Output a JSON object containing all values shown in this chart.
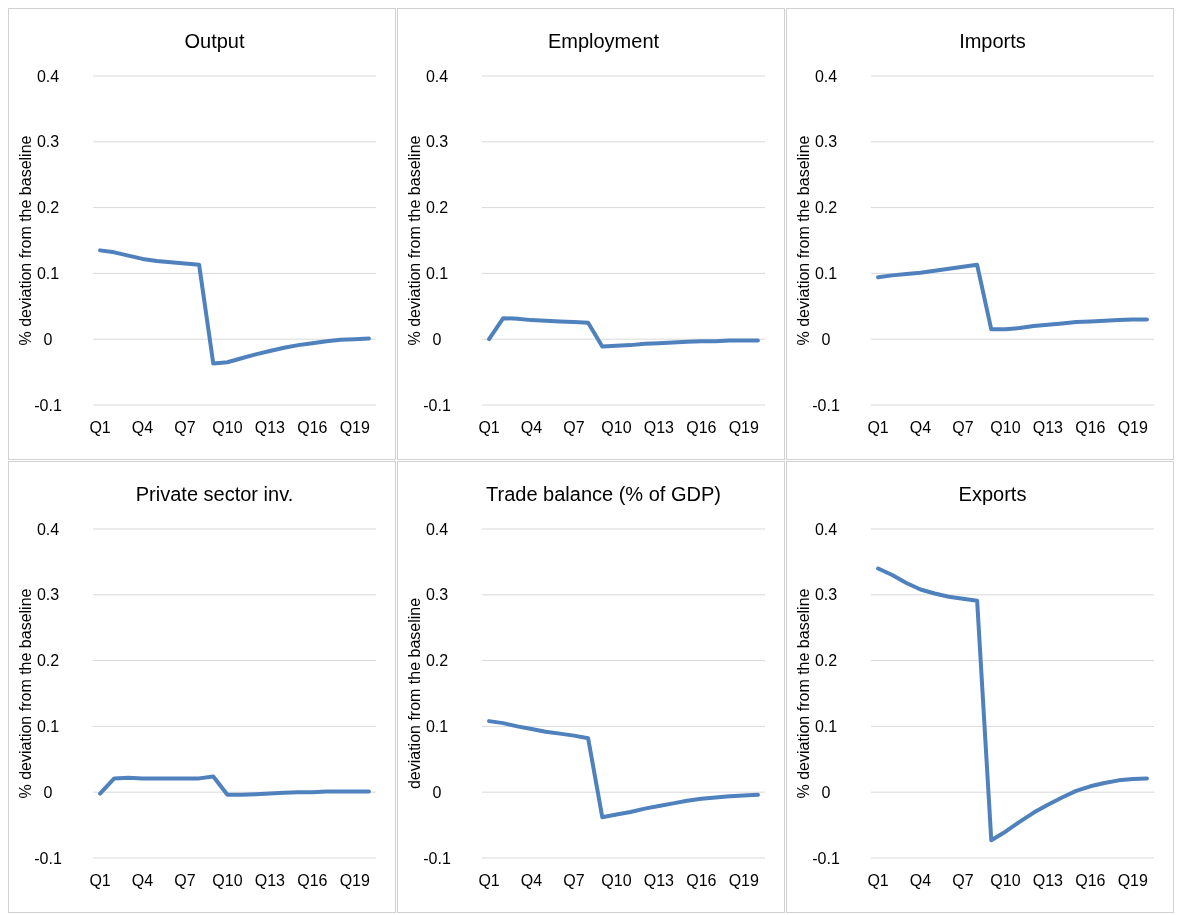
{
  "chart_data": [
    {
      "type": "line",
      "title": "Output",
      "ylabel": "% deviation from the baseline",
      "categories": [
        "Q1",
        null,
        null,
        "Q4",
        null,
        null,
        "Q7",
        null,
        null,
        "Q10",
        null,
        null,
        "Q13",
        null,
        null,
        "Q16",
        null,
        null,
        "Q19",
        null
      ],
      "values": [
        0.135,
        0.132,
        0.127,
        0.122,
        0.119,
        0.117,
        0.115,
        0.113,
        -0.037,
        -0.035,
        -0.029,
        -0.023,
        -0.018,
        -0.013,
        -0.009,
        -0.006,
        -0.003,
        -0.001,
        0.0,
        0.001
      ],
      "color": "#4f81bd",
      "ylim": [
        -0.1,
        0.4
      ],
      "yticks": [
        -0.1,
        0,
        0.1,
        0.2,
        0.3,
        0.4
      ],
      "grid": "y"
    },
    {
      "type": "line",
      "title": "Employment",
      "ylabel": "% deviation from the baseline",
      "categories": [
        "Q1",
        null,
        null,
        "Q4",
        null,
        null,
        "Q7",
        null,
        null,
        "Q10",
        null,
        null,
        "Q13",
        null,
        null,
        "Q16",
        null,
        null,
        "Q19",
        null
      ],
      "values": [
        0.0,
        0.032,
        0.031,
        0.029,
        0.028,
        0.027,
        0.026,
        0.025,
        -0.011,
        -0.01,
        -0.009,
        -0.007,
        -0.006,
        -0.005,
        -0.004,
        -0.003,
        -0.003,
        -0.002,
        -0.002,
        -0.002
      ],
      "color": "#4f81bd",
      "ylim": [
        -0.1,
        0.4
      ],
      "yticks": [
        -0.1,
        0,
        0.1,
        0.2,
        0.3,
        0.4
      ],
      "grid": "y"
    },
    {
      "type": "line",
      "title": "Imports",
      "ylabel": "% deviation from the baseline",
      "categories": [
        "Q1",
        null,
        null,
        "Q4",
        null,
        null,
        "Q7",
        null,
        null,
        "Q10",
        null,
        null,
        "Q13",
        null,
        null,
        "Q16",
        null,
        null,
        "Q19",
        null
      ],
      "values": [
        0.094,
        0.097,
        0.099,
        0.101,
        0.104,
        0.107,
        0.11,
        0.113,
        0.015,
        0.015,
        0.017,
        0.02,
        0.022,
        0.024,
        0.026,
        0.027,
        0.028,
        0.029,
        0.03,
        0.03
      ],
      "color": "#4f81bd",
      "ylim": [
        -0.1,
        0.4
      ],
      "yticks": [
        -0.1,
        0,
        0.1,
        0.2,
        0.3,
        0.4
      ],
      "grid": "y"
    },
    {
      "type": "line",
      "title": "Private sector inv.",
      "ylabel": "% deviation from the baseline",
      "categories": [
        "Q1",
        null,
        null,
        "Q4",
        null,
        null,
        "Q7",
        null,
        null,
        "Q10",
        null,
        null,
        "Q13",
        null,
        null,
        "Q16",
        null,
        null,
        "Q19",
        null
      ],
      "values": [
        -0.002,
        0.021,
        0.022,
        0.021,
        0.021,
        0.021,
        0.021,
        0.021,
        0.024,
        -0.004,
        -0.004,
        -0.003,
        -0.002,
        -0.001,
        0.0,
        0.0,
        0.001,
        0.001,
        0.001,
        0.001
      ],
      "color": "#4f81bd",
      "ylim": [
        -0.1,
        0.4
      ],
      "yticks": [
        -0.1,
        0,
        0.1,
        0.2,
        0.3,
        0.4
      ],
      "grid": "y"
    },
    {
      "type": "line",
      "title": "Trade balance (% of GDP)",
      "ylabel": "deviation from the baseline",
      "categories": [
        "Q1",
        null,
        null,
        "Q4",
        null,
        null,
        "Q7",
        null,
        null,
        "Q10",
        null,
        null,
        "Q13",
        null,
        null,
        "Q16",
        null,
        null,
        "Q19",
        null
      ],
      "values": [
        0.108,
        0.105,
        0.1,
        0.096,
        0.092,
        0.089,
        0.086,
        0.082,
        -0.038,
        -0.034,
        -0.03,
        -0.025,
        -0.021,
        -0.017,
        -0.013,
        -0.01,
        -0.008,
        -0.006,
        -0.005,
        -0.004
      ],
      "color": "#4f81bd",
      "ylim": [
        -0.1,
        0.4
      ],
      "yticks": [
        -0.1,
        0,
        0.1,
        0.2,
        0.3,
        0.4
      ],
      "grid": "y"
    },
    {
      "type": "line",
      "title": "Exports",
      "ylabel": "% deviation from the baseline",
      "categories": [
        "Q1",
        null,
        null,
        "Q4",
        null,
        null,
        "Q7",
        null,
        null,
        "Q10",
        null,
        null,
        "Q13",
        null,
        null,
        "Q16",
        null,
        null,
        "Q19",
        null
      ],
      "values": [
        0.34,
        0.33,
        0.318,
        0.308,
        0.302,
        0.297,
        0.294,
        0.291,
        -0.073,
        -0.06,
        -0.045,
        -0.031,
        -0.019,
        -0.008,
        0.002,
        0.009,
        0.014,
        0.018,
        0.02,
        0.021
      ],
      "color": "#4f81bd",
      "ylim": [
        -0.1,
        0.4
      ],
      "yticks": [
        -0.1,
        0,
        0.1,
        0.2,
        0.3,
        0.4
      ],
      "grid": "y"
    }
  ]
}
